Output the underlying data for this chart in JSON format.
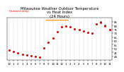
{
  "title": "Milwaukee Weather Outdoor Temperature\nvs Heat Index\n(24 Hours)",
  "title_fontsize": 3.8,
  "bg_color": "#ffffff",
  "plot_bg_color": "#ffffff",
  "grid_color": "#999999",
  "temp_color": "#ff0000",
  "heat_color": "#000000",
  "legend_heat_color": "#ff8800",
  "hours": [
    0,
    1,
    2,
    3,
    4,
    5,
    6,
    7,
    8,
    9,
    10,
    11,
    12,
    13,
    14,
    15,
    16,
    17,
    18,
    19,
    20,
    21,
    22,
    23
  ],
  "temp": [
    48,
    46,
    44,
    43,
    42,
    41,
    40,
    39,
    51,
    58,
    64,
    72,
    78,
    79,
    78,
    76,
    75,
    73,
    71,
    70,
    82,
    84,
    79,
    75
  ],
  "heat_index": [
    48,
    46,
    44,
    43,
    42,
    41,
    40,
    39,
    51,
    58,
    64,
    72,
    78,
    79,
    78,
    76,
    75,
    73,
    71,
    70,
    82,
    85,
    80,
    75
  ],
  "ylim": [
    35,
    90
  ],
  "yticks": [
    40,
    45,
    50,
    55,
    60,
    65,
    70,
    75,
    80,
    85
  ],
  "tick_fontsize": 2.8,
  "xtick_labels": [
    "12",
    "1",
    "2",
    "3",
    "4",
    "5",
    "6",
    "7",
    "8",
    "9",
    "10",
    "11",
    "12",
    "1",
    "2",
    "3",
    "4",
    "5",
    "6",
    "7",
    "8",
    "9",
    "10",
    "11"
  ],
  "markersize_temp": 1.0,
  "markersize_heat": 0.8
}
